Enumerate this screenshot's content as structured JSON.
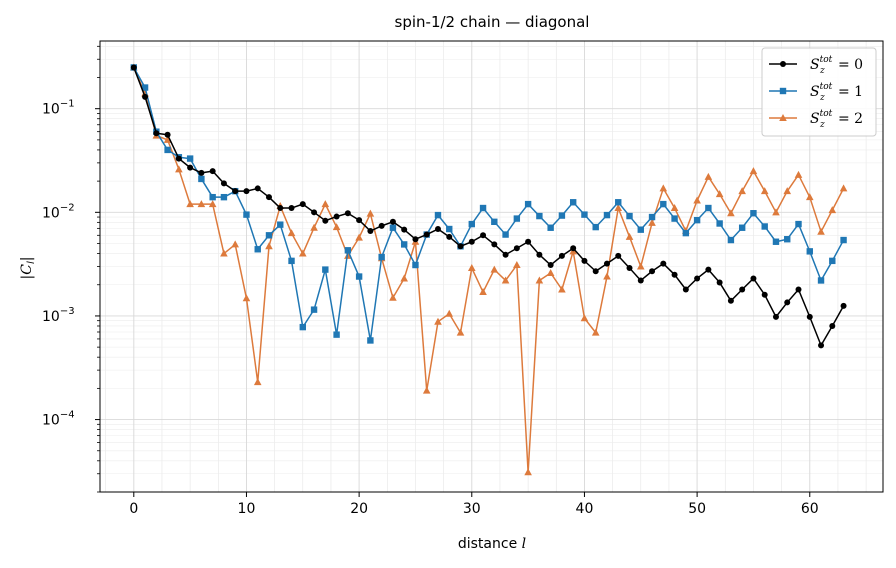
{
  "chart_data": {
    "type": "line",
    "title": "spin-1/2 chain — diagonal",
    "xlabel": "distance l",
    "ylabel": "|C_l|",
    "yscale": "log",
    "xlim": [
      -3,
      66.5
    ],
    "ylim": [
      2e-05,
      0.45
    ],
    "grid": true,
    "legend_position": "top-right",
    "x_ticks": [
      0,
      10,
      20,
      30,
      40,
      50,
      60
    ],
    "y_ticks": [
      {
        "value": 0.1,
        "base": "10",
        "exp": "−1"
      },
      {
        "value": 0.01,
        "base": "10",
        "exp": "−2"
      },
      {
        "value": 0.001,
        "base": "10",
        "exp": "−3"
      },
      {
        "value": 0.0001,
        "base": "10",
        "exp": "−4"
      }
    ],
    "x": [
      0,
      1,
      2,
      3,
      4,
      5,
      6,
      7,
      8,
      9,
      10,
      11,
      12,
      13,
      14,
      15,
      16,
      17,
      18,
      19,
      20,
      21,
      22,
      23,
      24,
      25,
      26,
      27,
      28,
      29,
      30,
      31,
      32,
      33,
      34,
      35,
      36,
      37,
      38,
      39,
      40,
      41,
      42,
      43,
      44,
      45,
      46,
      47,
      48,
      49,
      50,
      51,
      52,
      53,
      54,
      55,
      56,
      57,
      58,
      59,
      60,
      61,
      62,
      63
    ],
    "series": [
      {
        "legend_main": "S",
        "legend_sub": "z",
        "legend_sup": "tot",
        "legend_value": "= 0",
        "color": "#000000",
        "marker": "circle",
        "values": [
          0.25,
          0.13,
          0.058,
          0.056,
          0.033,
          0.027,
          0.024,
          0.025,
          0.019,
          0.016,
          0.016,
          0.017,
          0.014,
          0.011,
          0.011,
          0.012,
          0.01,
          0.0083,
          0.0091,
          0.0098,
          0.0084,
          0.0066,
          0.0074,
          0.0081,
          0.0068,
          0.0055,
          0.0061,
          0.0069,
          0.0058,
          0.0047,
          0.0052,
          0.006,
          0.0049,
          0.0039,
          0.0045,
          0.0052,
          0.0039,
          0.0031,
          0.0038,
          0.0045,
          0.0034,
          0.0027,
          0.0032,
          0.0038,
          0.0029,
          0.0022,
          0.0027,
          0.0032,
          0.0025,
          0.0018,
          0.0023,
          0.0028,
          0.0021,
          0.0014,
          0.0018,
          0.0023,
          0.0016,
          0.00098,
          0.00135,
          0.0018,
          0.00098,
          0.00052,
          0.0008,
          0.00125
        ]
      },
      {
        "legend_main": "S",
        "legend_sub": "z",
        "legend_sup": "tot",
        "legend_value": "= 1",
        "color": "#1f77b4",
        "marker": "square",
        "values": [
          0.25,
          0.16,
          0.06,
          0.04,
          0.034,
          0.033,
          0.021,
          0.014,
          0.014,
          0.016,
          0.0095,
          0.0044,
          0.006,
          0.0076,
          0.0034,
          0.00078,
          0.00115,
          0.0028,
          0.00066,
          0.0043,
          0.0024,
          0.00058,
          0.0037,
          0.0071,
          0.0049,
          0.0031,
          0.0061,
          0.0094,
          0.0069,
          0.0047,
          0.0077,
          0.011,
          0.0081,
          0.0061,
          0.0087,
          0.012,
          0.0092,
          0.0071,
          0.0093,
          0.0125,
          0.0095,
          0.0072,
          0.0094,
          0.0125,
          0.0092,
          0.0068,
          0.009,
          0.012,
          0.0087,
          0.0063,
          0.0084,
          0.011,
          0.0078,
          0.0054,
          0.0071,
          0.0098,
          0.0073,
          0.0052,
          0.0055,
          0.0077,
          0.0042,
          0.0022,
          0.0034,
          0.0054
        ]
      },
      {
        "legend_main": "S",
        "legend_sub": "z",
        "legend_sup": "tot",
        "legend_value": "= 2",
        "color": "#dd7a3c",
        "marker": "triangle",
        "values": [
          0.25,
          0.14,
          0.055,
          0.05,
          0.026,
          0.012,
          0.012,
          0.012,
          0.004,
          0.0049,
          0.00148,
          0.00023,
          0.0047,
          0.0115,
          0.0063,
          0.004,
          0.0071,
          0.012,
          0.0072,
          0.0038,
          0.0057,
          0.0097,
          0.0036,
          0.0015,
          0.0023,
          0.0052,
          0.00019,
          0.00088,
          0.00105,
          0.00069,
          0.0029,
          0.0017,
          0.0028,
          0.0022,
          0.0031,
          3.1e-05,
          0.0022,
          0.0026,
          0.0018,
          0.0042,
          0.00095,
          0.00069,
          0.0024,
          0.011,
          0.0058,
          0.003,
          0.0079,
          0.017,
          0.011,
          0.0066,
          0.013,
          0.022,
          0.015,
          0.0098,
          0.016,
          0.025,
          0.016,
          0.01,
          0.016,
          0.023,
          0.014,
          0.0065,
          0.0105,
          0.017
        ]
      }
    ]
  }
}
